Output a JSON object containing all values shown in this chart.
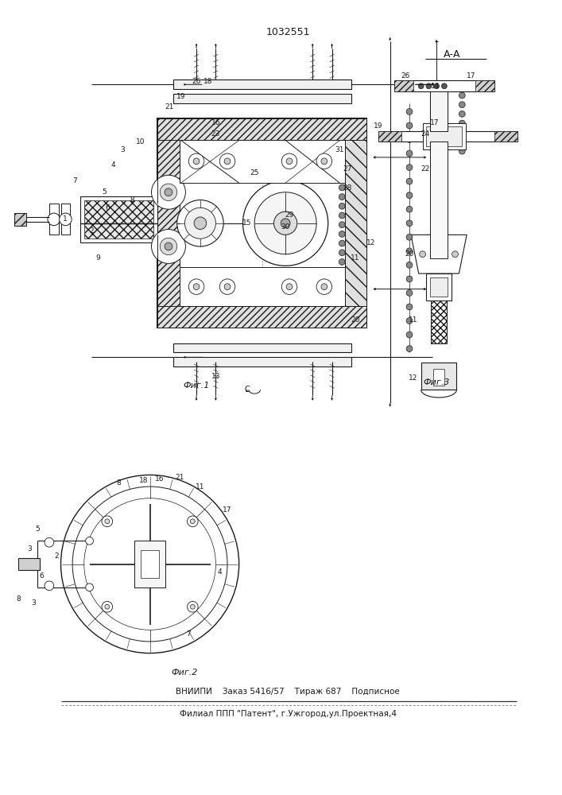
{
  "title": "1032551",
  "background_color": "#ffffff",
  "footer_line1": "ВНИИПИ    Заказ 5416/57    Тираж 687    Подписное",
  "footer_line2": "Филиал ППП \"Патент\", г.Ужгород,ул.Проектная,4",
  "fig1_label": "Фиг.1",
  "fig2_label": "Фиг.2",
  "fig3_label": "Фиг.3",
  "aa_label": "А-А",
  "line_color": "#1a1a1a",
  "text_color": "#1a1a1a",
  "hatch_gray": "#888888",
  "light_gray": "#cccccc",
  "mid_gray": "#999999"
}
